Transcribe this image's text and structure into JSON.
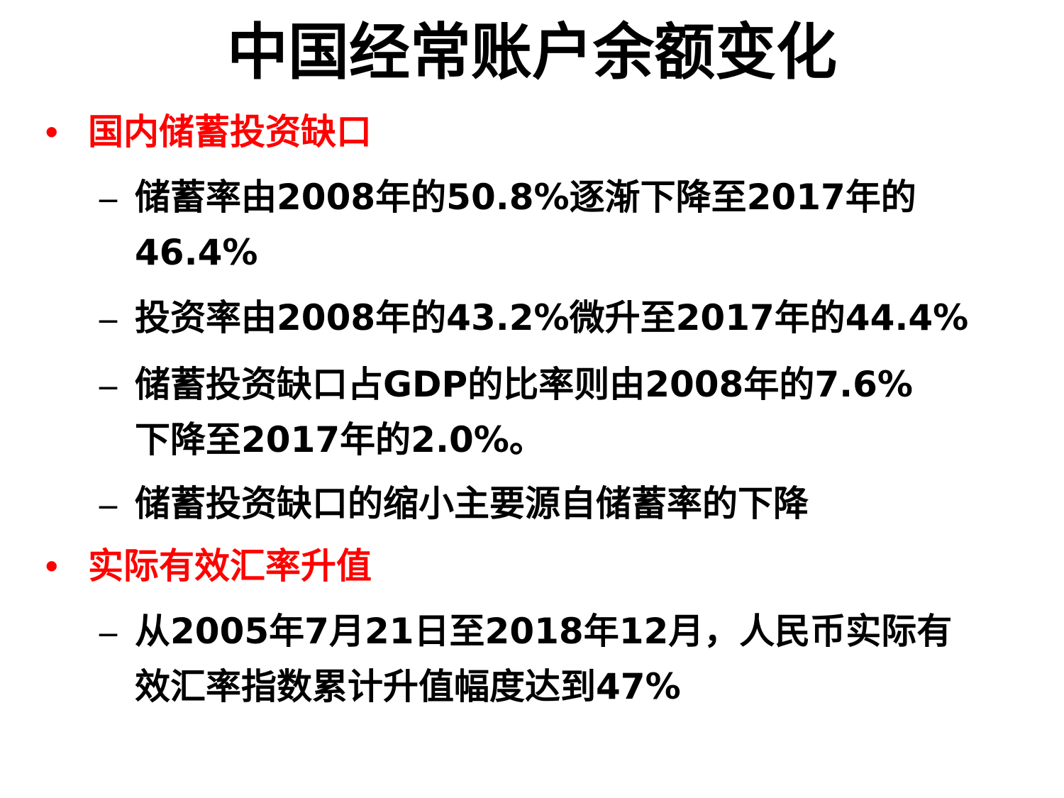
{
  "slide": {
    "title": "中国经常账户余额变化",
    "colors": {
      "bullet_heading": "#ff0000",
      "body_text": "#000000",
      "background": "#ffffff"
    },
    "sections": [
      {
        "bullet": "•",
        "heading": "国内储蓄投资缺口",
        "items": [
          {
            "dash": "–",
            "lines": [
              "储蓄率由2008年的50.8%逐渐下降至2017年的",
              "46.4%"
            ]
          },
          {
            "dash": "–",
            "lines": [
              "投资率由2008年的43.2%微升至2017年的44.4%"
            ]
          },
          {
            "dash": "–",
            "lines": [
              "储蓄投资缺口占GDP的比率则由2008年的7.6%",
              "下降至2017年的2.0%。"
            ]
          },
          {
            "dash": "–",
            "lines": [
              "储蓄投资缺口的缩小主要源自储蓄率的下降"
            ]
          }
        ]
      },
      {
        "bullet": "•",
        "heading": "实际有效汇率升值",
        "items": [
          {
            "dash": "–",
            "lines": [
              "从2005年7月21日至2018年12月，人民币实际有",
              "效汇率指数累计升值幅度达到47%"
            ]
          }
        ]
      }
    ]
  }
}
